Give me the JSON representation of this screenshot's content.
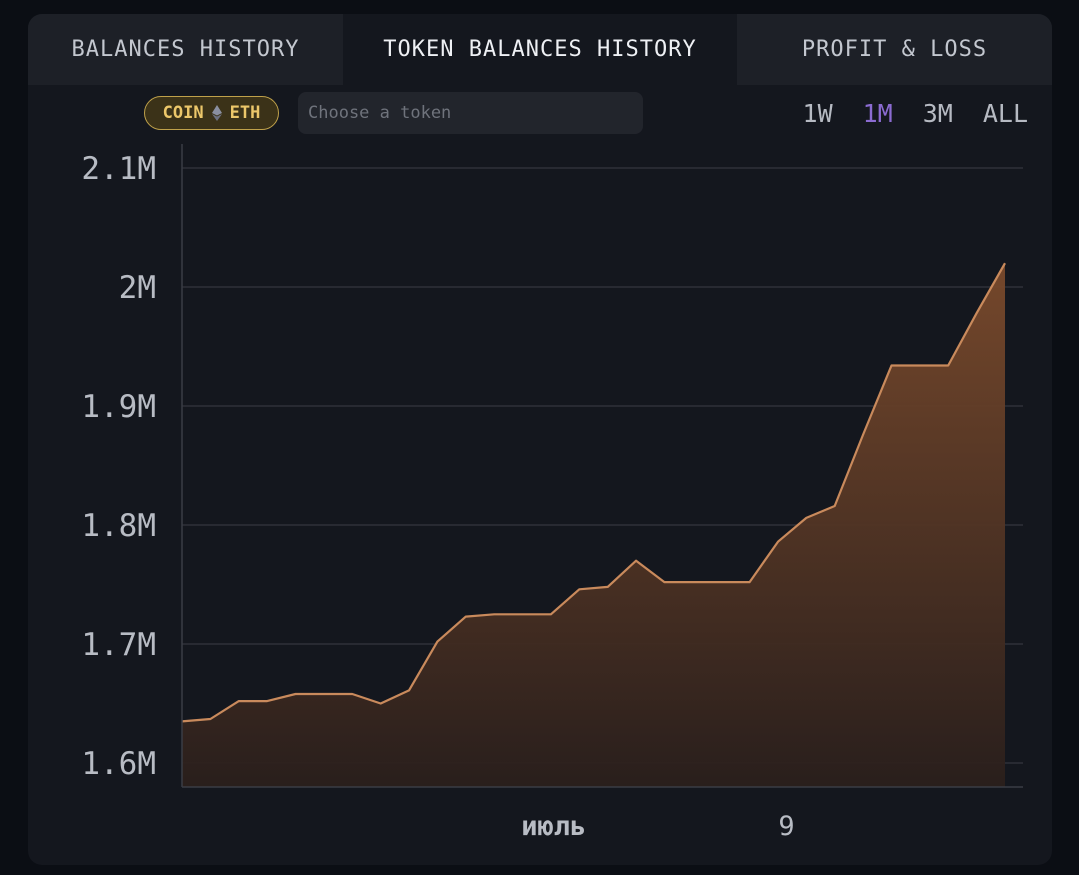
{
  "tabs": [
    {
      "label": "BALANCES HISTORY",
      "active": false
    },
    {
      "label": "TOKEN BALANCES HISTORY",
      "active": true
    },
    {
      "label": "PROFIT & LOSS",
      "active": false
    }
  ],
  "token_filter": {
    "badge_prefix": "COIN",
    "badge_icon": "ethereum-icon",
    "badge_token": "ETH",
    "input_value": "",
    "input_placeholder": "Choose a token"
  },
  "time_ranges": [
    {
      "label": "1W",
      "active": false
    },
    {
      "label": "1M",
      "active": true
    },
    {
      "label": "3M",
      "active": false
    },
    {
      "label": "ALL",
      "active": false
    }
  ],
  "colors": {
    "accent_line": "#c98a5c",
    "accent_active_range": "#8b6bd1",
    "badge_text": "#ecc76a"
  },
  "chart_data": {
    "type": "area",
    "ylim": [
      1580000,
      2100000
    ],
    "y_ticks": [
      {
        "value": 1600000,
        "label": "1.6M"
      },
      {
        "value": 1700000,
        "label": "1.7M"
      },
      {
        "value": 1800000,
        "label": "1.8M"
      },
      {
        "value": 1900000,
        "label": "1.9M"
      },
      {
        "value": 2000000,
        "label": "2M"
      },
      {
        "value": 2100000,
        "label": "2.1M"
      }
    ],
    "x_ticks": [
      {
        "index": 13.1,
        "label": "июль",
        "bold": true
      },
      {
        "index": 21.3,
        "label": "9",
        "bold": false
      }
    ],
    "grid": true,
    "series": [
      {
        "values": [
          1635000,
          1637000,
          1652000,
          1652000,
          1658000,
          1658000,
          1658000,
          1650000,
          1661000,
          1702000,
          1723000,
          1725000,
          1725000,
          1725000,
          1746000,
          1748000,
          1770000,
          1752000,
          1752000,
          1752000,
          1752000,
          1786000,
          1806000,
          1816000,
          1876000,
          1934000,
          1934000,
          1934000,
          1978000,
          2020000
        ]
      }
    ]
  }
}
